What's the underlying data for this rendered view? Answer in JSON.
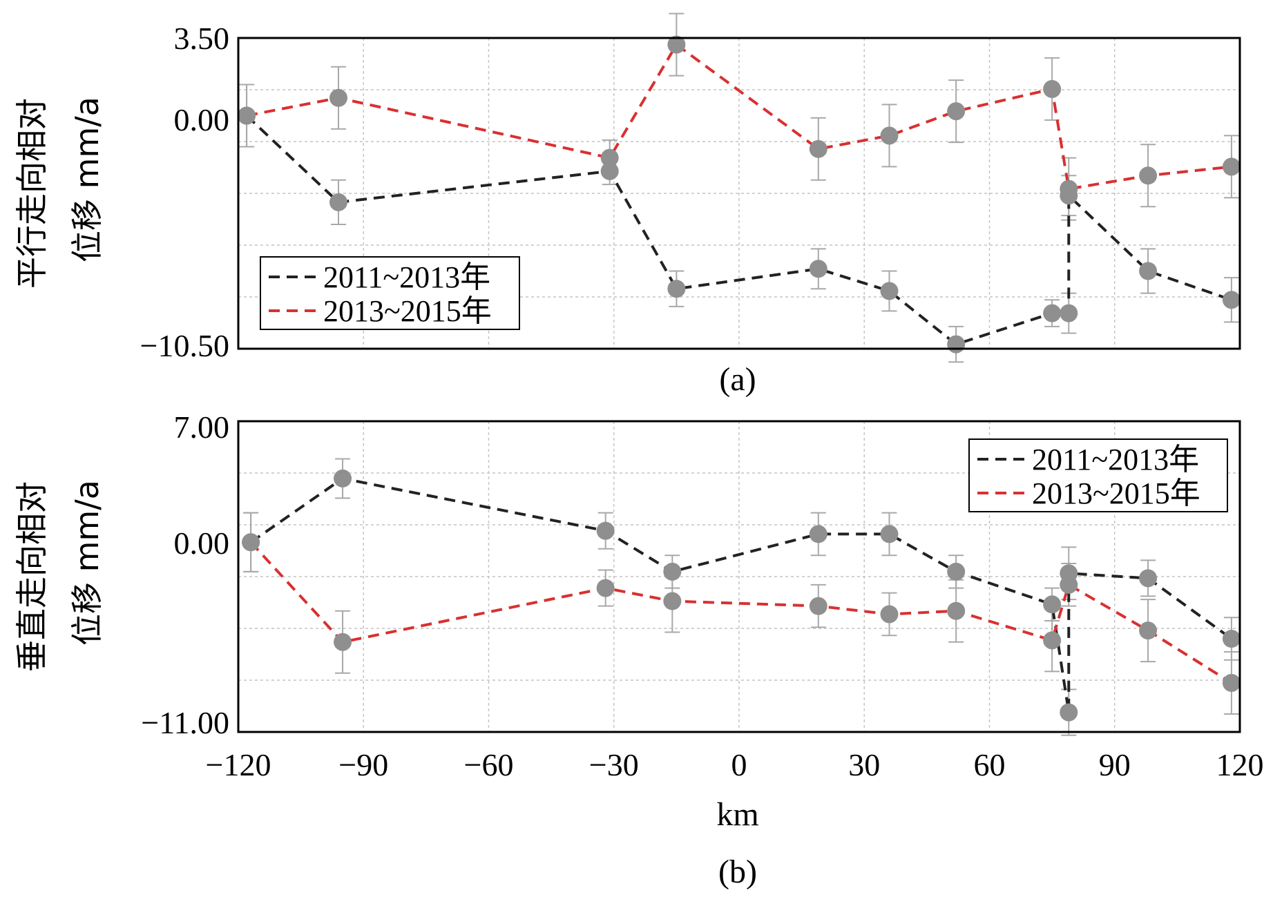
{
  "chart_data": [
    {
      "type": "line",
      "panel": "a",
      "caption": "(a)",
      "ylabel_lines": [
        "平行走向相对",
        "位移 mm/a"
      ],
      "ytick_labels": [
        "3.50",
        "0.00",
        "−10.50"
      ],
      "ylim": [
        -10.5,
        3.5
      ],
      "xlim": [
        -120,
        120
      ],
      "grid": true,
      "legend_position": "bottom-left",
      "series": [
        {
          "name": "2011~2013年",
          "color": "#222222",
          "x": [
            -118,
            -96,
            -31,
            -15,
            19,
            36,
            52,
            75,
            79,
            79,
            98,
            118
          ],
          "y": [
            0.0,
            -3.9,
            -2.5,
            -7.8,
            -6.9,
            -7.9,
            -10.3,
            -8.9,
            -8.9,
            -3.6,
            -7.0,
            -8.3
          ],
          "err": [
            1.4,
            1.0,
            0.6,
            0.8,
            0.9,
            0.9,
            0.8,
            0.6,
            0.9,
            0.9,
            1.0,
            1.0
          ]
        },
        {
          "name": "2013~2015年",
          "color": "#d93030",
          "x": [
            -118,
            -96,
            -31,
            -15,
            19,
            36,
            52,
            75,
            79,
            98,
            118
          ],
          "y": [
            0.0,
            0.8,
            -1.9,
            3.2,
            -1.5,
            -0.9,
            0.2,
            1.2,
            -3.3,
            -2.7,
            -2.3
          ],
          "err": [
            1.4,
            1.4,
            0.8,
            1.4,
            1.4,
            1.4,
            1.4,
            1.4,
            1.4,
            1.4,
            1.4
          ]
        }
      ]
    },
    {
      "type": "line",
      "panel": "b",
      "caption": "(b)",
      "ylabel_lines": [
        "垂直走向相对",
        "位移 mm/a"
      ],
      "ytick_labels": [
        "7.00",
        "0.00",
        "−11.00"
      ],
      "ylim": [
        -11.5,
        7.5
      ],
      "xlim": [
        -120,
        120
      ],
      "xtick_values": [
        -120,
        -90,
        -60,
        -30,
        0,
        30,
        60,
        90,
        120
      ],
      "xtick_labels": [
        "−120",
        "−90",
        "−60",
        "−30",
        "0",
        "30",
        "60",
        "90",
        "120"
      ],
      "xlabel": "km",
      "grid": true,
      "legend_position": "top-right",
      "series": [
        {
          "name": "2011~2013年",
          "color": "#222222",
          "x": [
            -117,
            -95,
            -32,
            -16,
            19,
            36,
            52,
            75,
            79,
            79,
            98,
            118
          ],
          "y": [
            0.1,
            4.0,
            0.8,
            -1.7,
            0.6,
            0.6,
            -1.7,
            -3.7,
            -10.3,
            -1.8,
            -2.1,
            -5.8
          ],
          "err": [
            1.8,
            1.2,
            1.1,
            1.0,
            1.3,
            1.3,
            1.0,
            1.0,
            1.4,
            1.6,
            1.1,
            1.3
          ]
        },
        {
          "name": "2013~2015年",
          "color": "#d93030",
          "x": [
            -117,
            -95,
            -32,
            -16,
            19,
            36,
            52,
            75,
            79,
            98,
            118
          ],
          "y": [
            0.1,
            -6.0,
            -2.7,
            -3.5,
            -3.8,
            -4.3,
            -4.1,
            -5.9,
            -2.5,
            -5.3,
            -8.5
          ],
          "err": [
            1.8,
            1.9,
            1.1,
            1.9,
            1.3,
            1.3,
            1.9,
            1.9,
            1.3,
            1.9,
            1.9
          ]
        }
      ]
    }
  ]
}
